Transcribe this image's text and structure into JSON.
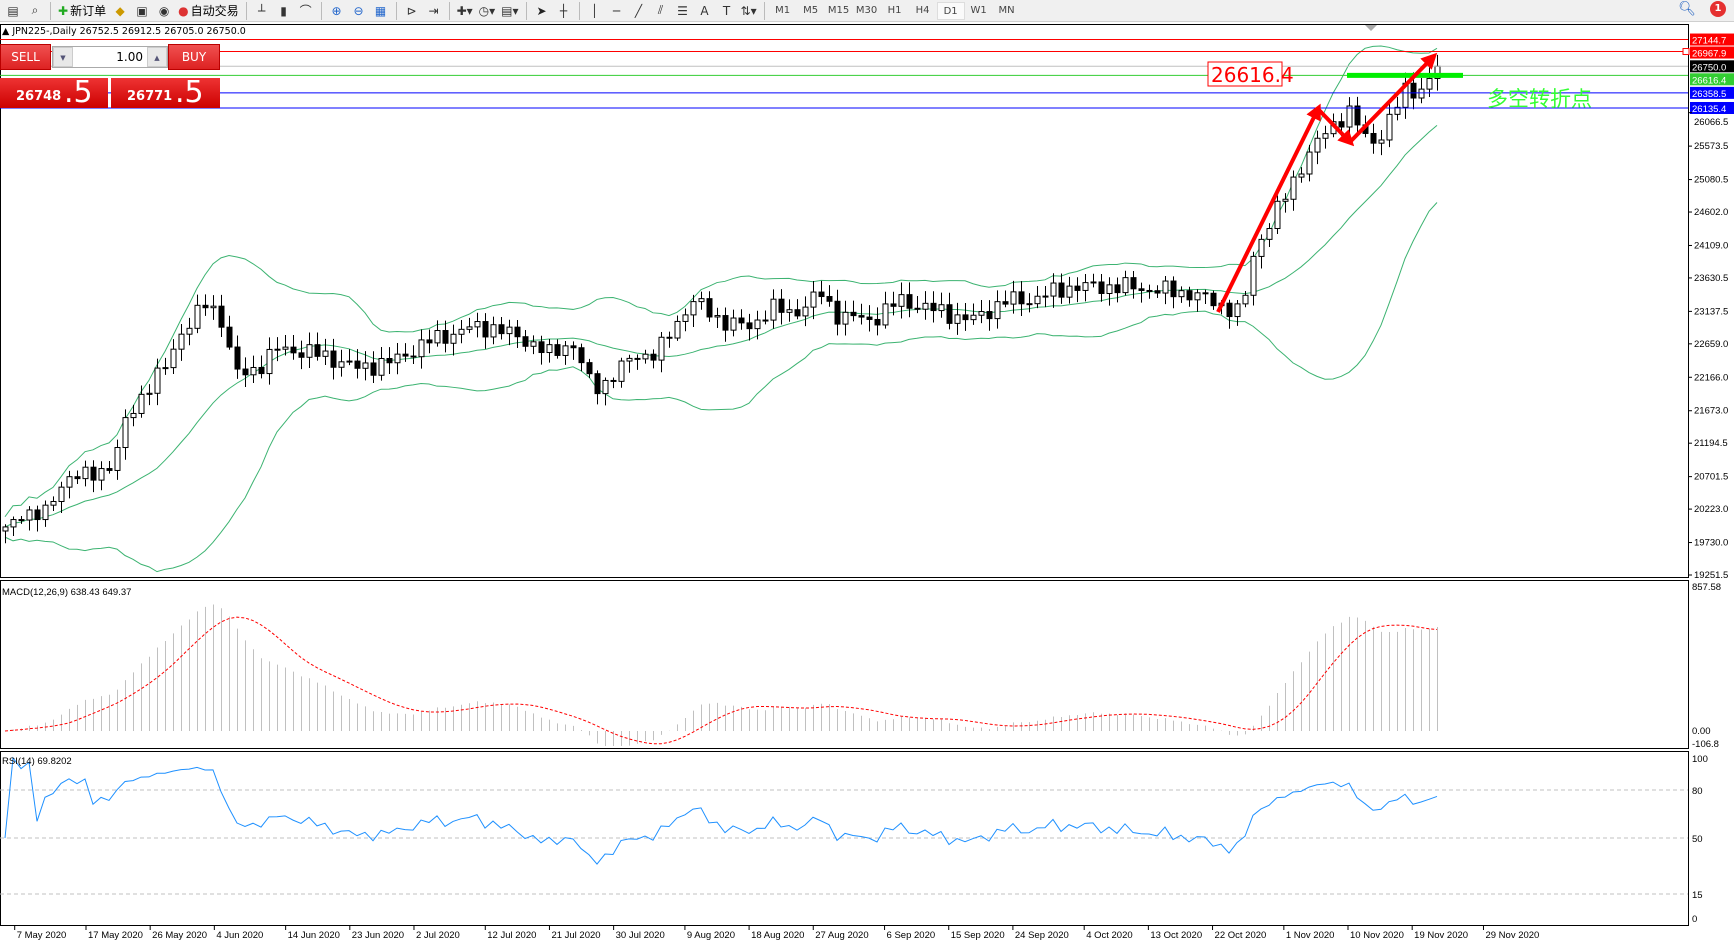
{
  "toolbar": {
    "items": [
      {
        "icon": "new-chart-icon"
      },
      {
        "icon": "zoom-chart-icon"
      },
      {
        "icon": "new-order-icon",
        "label": "新订单"
      },
      {
        "icon": "metaeditor-icon"
      },
      {
        "icon": "terminal-icon"
      },
      {
        "icon": "signal-icon"
      },
      {
        "icon": "auto-trading-icon",
        "label": "自动交易"
      },
      {
        "icon": "bar-chart-icon"
      },
      {
        "icon": "candlestick-icon"
      },
      {
        "icon": "line-chart-icon"
      },
      {
        "icon": "zoom-in-icon"
      },
      {
        "icon": "zoom-out-icon"
      },
      {
        "icon": "tile-windows-icon"
      },
      {
        "icon": "chart-shift-icon"
      },
      {
        "icon": "autoscroll-icon"
      },
      {
        "icon": "indicators-icon"
      },
      {
        "icon": "periods-icon"
      },
      {
        "icon": "templates-icon"
      },
      {
        "icon": "cursor-icon"
      },
      {
        "icon": "crosshair-icon"
      },
      {
        "icon": "vertical-line-icon"
      },
      {
        "icon": "horizontal-line-icon"
      },
      {
        "icon": "trendline-icon"
      },
      {
        "icon": "equidistant-channel-icon"
      },
      {
        "icon": "fibonacci-icon"
      },
      {
        "icon": "text-icon"
      },
      {
        "icon": "text-label-icon"
      },
      {
        "icon": "arrows-icon"
      }
    ],
    "timeframes": [
      "M1",
      "M5",
      "M15",
      "M30",
      "H1",
      "H4",
      "D1",
      "W1",
      "MN"
    ],
    "active_timeframe": "D1",
    "notification_count": "1"
  },
  "symbol_header": "JPN225-,Daily  26752.5 26912.5 26705.0 26750.0",
  "trade_panel": {
    "sell_label": "SELL",
    "buy_label": "BUY",
    "lot": "1.00",
    "sell_price_main": "26748",
    "sell_price_tail": ".5",
    "buy_price_main": "26771",
    "buy_price_tail": ".5"
  },
  "colors": {
    "bull": "#ffffff",
    "bear": "#000000",
    "bands": "#3cb371",
    "macd_hist": "#c0c0c0",
    "macd_signal": "#ff0000",
    "rsi": "#1e90ff",
    "annotation": "#ff0000",
    "pivot_text": "#33ff33"
  },
  "annotations": {
    "price_box": "26616.4",
    "pivot_text": "多空转折点"
  },
  "chart_data": {
    "type": "candlestick",
    "symbol": "JPN225-",
    "timeframe": "Daily",
    "ohlc_last": {
      "open": 26752.5,
      "high": 26912.5,
      "low": 26705.0,
      "close": 26750.0
    },
    "ylim": [
      19251.5,
      27290
    ],
    "price_ticks": [
      "26066.5",
      "25573.5",
      "25080.5",
      "24602.0",
      "24109.0",
      "23630.5",
      "23137.5",
      "22659.0",
      "22166.0",
      "21673.0",
      "21194.5",
      "20701.5",
      "20223.0",
      "19730.0",
      "19251.5"
    ],
    "date_ticks": [
      "7 May 2020",
      "17 May 2020",
      "26 May 2020",
      "4 Jun 2020",
      "14 Jun 2020",
      "23 Jun 2020",
      "2 Jul 2020",
      "12 Jul 2020",
      "21 Jul 2020",
      "30 Jul 2020",
      "9 Aug 2020",
      "18 Aug 2020",
      "27 Aug 2020",
      "6 Sep 2020",
      "15 Sep 2020",
      "24 Sep 2020",
      "4 Oct 2020",
      "13 Oct 2020",
      "22 Oct 2020",
      "1 Nov 2020",
      "10 Nov 2020",
      "19 Nov 2020",
      "29 Nov 2020"
    ],
    "close_path": [
      [
        "2020-05-06",
        19900
      ],
      [
        "2020-05-08",
        20200
      ],
      [
        "2020-05-11",
        20100
      ],
      [
        "2020-05-14",
        20700
      ],
      [
        "2020-05-17",
        20700
      ],
      [
        "2020-05-21",
        20900
      ],
      [
        "2020-05-22",
        21400
      ],
      [
        "2020-05-24",
        21800
      ],
      [
        "2020-05-28",
        22300
      ],
      [
        "2020-05-30",
        22800
      ],
      [
        "2020-06-01",
        23000
      ],
      [
        "2020-06-03",
        23300
      ],
      [
        "2020-06-05",
        23000
      ],
      [
        "2020-06-07",
        22200
      ],
      [
        "2020-06-10",
        22300
      ],
      [
        "2020-06-13",
        22600
      ],
      [
        "2020-06-19",
        22500
      ],
      [
        "2020-06-24",
        22300
      ],
      [
        "2020-06-29",
        22400
      ],
      [
        "2020-07-04",
        22700
      ],
      [
        "2020-07-10",
        22900
      ],
      [
        "2020-07-13",
        22900
      ],
      [
        "2020-07-18",
        22700
      ],
      [
        "2020-07-21",
        22500
      ],
      [
        "2020-07-24",
        22700
      ],
      [
        "2020-07-27",
        22000
      ],
      [
        "2020-07-29",
        22100
      ],
      [
        "2020-08-02",
        22500
      ],
      [
        "2020-08-05",
        22500
      ],
      [
        "2020-08-08",
        23000
      ],
      [
        "2020-08-10",
        23300
      ],
      [
        "2020-08-14",
        23000
      ],
      [
        "2020-08-18",
        22900
      ],
      [
        "2020-08-21",
        23200
      ],
      [
        "2020-08-24",
        23100
      ],
      [
        "2020-08-28",
        23400
      ],
      [
        "2020-08-30",
        23100
      ],
      [
        "2020-09-04",
        23000
      ],
      [
        "2020-09-08",
        23300
      ],
      [
        "2020-09-15",
        23100
      ],
      [
        "2020-09-18",
        23000
      ],
      [
        "2020-09-23",
        23300
      ],
      [
        "2020-09-26",
        23300
      ],
      [
        "2020-10-02",
        23500
      ],
      [
        "2020-10-10",
        23500
      ],
      [
        "2020-10-19",
        23400
      ],
      [
        "2020-10-24",
        23200
      ],
      [
        "2020-10-26",
        23100
      ],
      [
        "2020-10-28",
        24100
      ],
      [
        "2020-11-01",
        24800
      ],
      [
        "2020-11-04",
        25400
      ],
      [
        "2020-11-07",
        25800
      ],
      [
        "2020-11-10",
        26100
      ],
      [
        "2020-11-13",
        25600
      ],
      [
        "2020-11-15",
        25800
      ],
      [
        "2020-11-18",
        26400
      ],
      [
        "2020-11-20",
        26400
      ],
      [
        "2020-11-23",
        26700
      ],
      [
        "2020-11-26",
        26750
      ]
    ],
    "levels": [
      {
        "price": 27144.7,
        "label": "27144.7",
        "color": "#ff0000"
      },
      {
        "price": 26967.9,
        "label": "26967.9",
        "color": "#ff0000"
      },
      {
        "price": 26750.0,
        "label": "26750.0",
        "color": "#c0c0c0",
        "tag": "#000000"
      },
      {
        "price": 26616.4,
        "label": "26616.4",
        "color": "#32cd32"
      },
      {
        "price": 26358.5,
        "label": "26358.5",
        "color": "#0000ff"
      },
      {
        "price": 26135.4,
        "label": "26135.4",
        "color": "#0000ff"
      }
    ],
    "indicators": {
      "bands": "Bollinger",
      "macd": {
        "label": "MACD(12,26,9) 638.43 649.37",
        "ylim": [
          -106.8,
          857.58
        ],
        "ticks": [
          "857.58",
          "0.00",
          "-106.8"
        ]
      },
      "rsi": {
        "label": "RSI(14) 69.8202",
        "ylim": [
          0,
          100
        ],
        "levels": [
          80,
          50,
          15
        ],
        "ticks": [
          "100",
          "80",
          "50",
          "15",
          "0"
        ]
      }
    }
  }
}
